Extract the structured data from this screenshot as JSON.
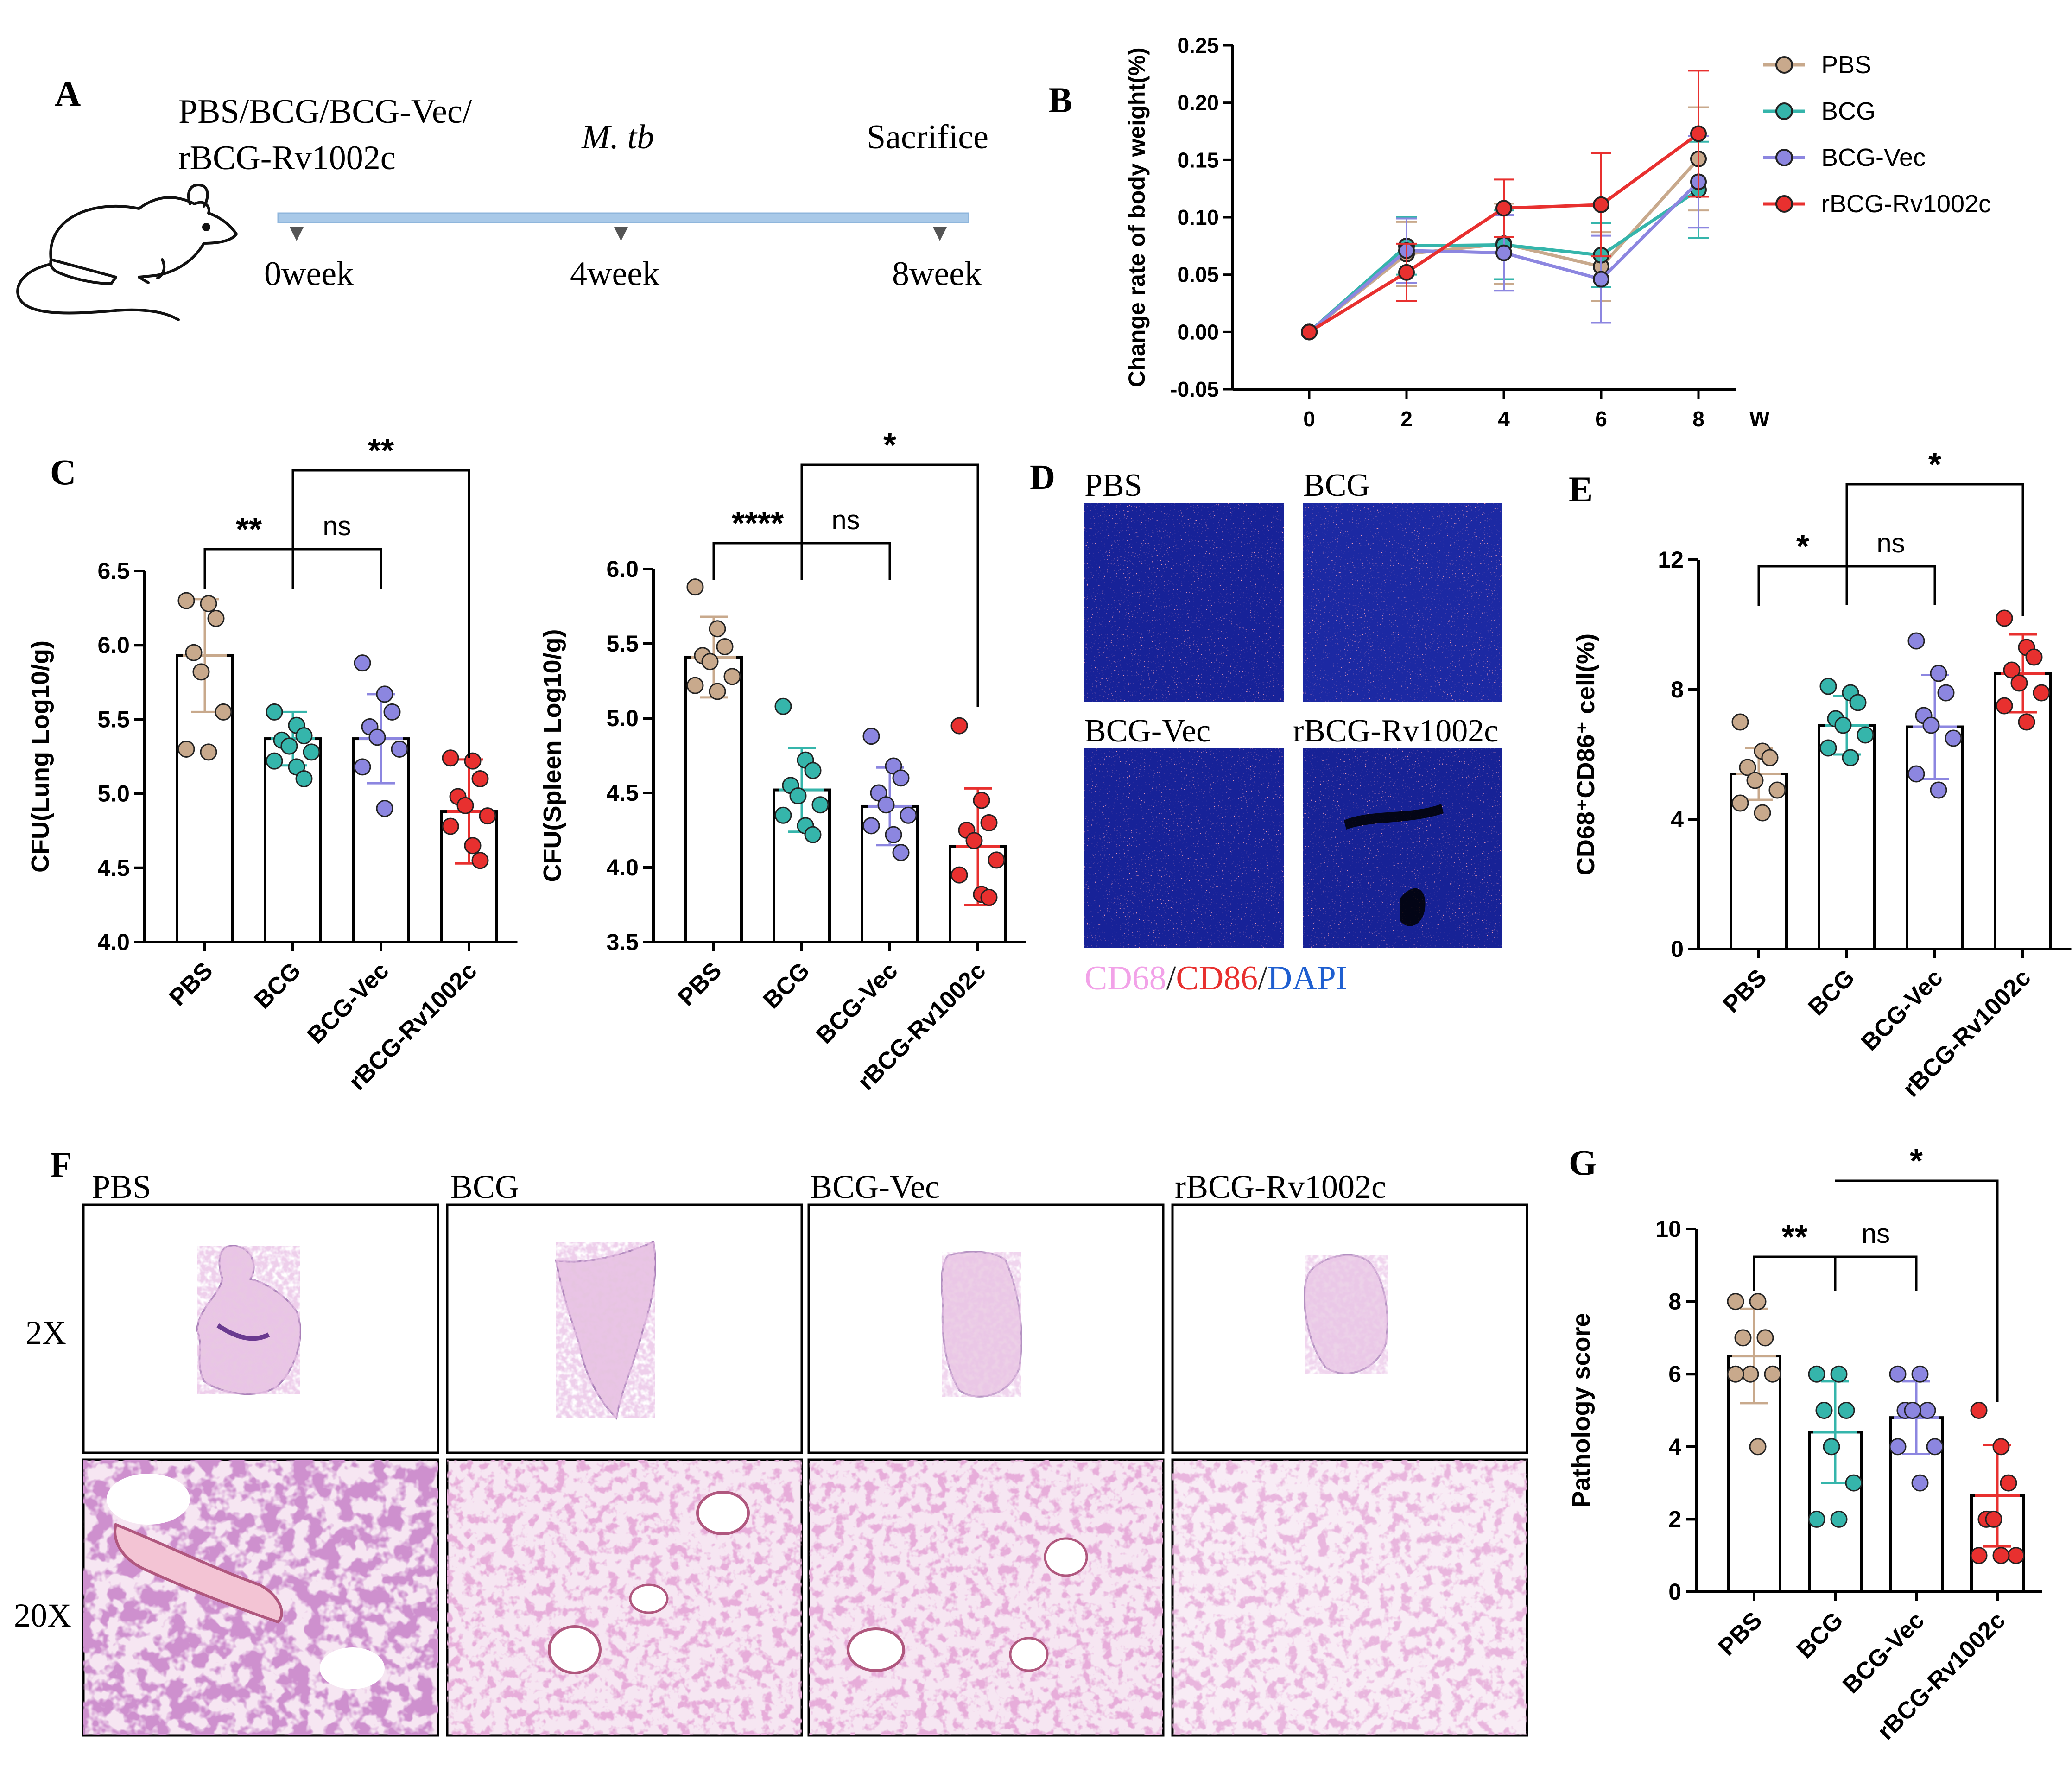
{
  "colors": {
    "PBS": "#c8a98c",
    "BCG": "#35b5ab",
    "BCG-Vec": "#8c86e0",
    "rBCG-Rv1002c": "#e8302f",
    "timeline": "#a9c9e8"
  },
  "panel_a": {
    "letter": "A",
    "groups_line1": "PBS/BCG/BCG-Vec/",
    "groups_line2": "rBCG-Rv1002c",
    "challenge": "M. tb",
    "sacrifice": "Sacrifice",
    "ticks": [
      "0week",
      "4week",
      "8week"
    ]
  },
  "panel_d": {
    "letter": "D",
    "images": [
      "PBS",
      "BCG",
      "BCG-Vec",
      "rBCG-Rv1002c"
    ],
    "stain_cd68": "CD68",
    "stain_sep1": "/",
    "stain_cd86": "CD86",
    "stain_sep2": "/",
    "stain_dapi": "DAPI"
  },
  "panel_f": {
    "letter": "F",
    "columns": [
      "PBS",
      "BCG",
      "BCG-Vec",
      "rBCG-Rv1002c"
    ],
    "rows": [
      "2X",
      "20X"
    ]
  },
  "chart_data": [
    {
      "id": "B",
      "type": "line",
      "panel_letter": "B",
      "ylabel": "Change rate of body weight(%)",
      "xlabel": "W",
      "x": [
        0,
        2,
        4,
        6,
        8
      ],
      "ylim": [
        -0.05,
        0.25
      ],
      "yticks": [
        "-0.05",
        "0.00",
        "0.05",
        "0.10",
        "0.15",
        "0.20",
        "0.25"
      ],
      "xticks": [
        "0",
        "2",
        "4",
        "6",
        "8"
      ],
      "legend_position": "top-right",
      "series": [
        {
          "name": "PBS",
          "values": [
            0.0,
            0.068,
            0.077,
            0.057,
            0.151
          ],
          "err": [
            0,
            0.028,
            0.035,
            0.03,
            0.045
          ]
        },
        {
          "name": "BCG",
          "values": [
            0.0,
            0.075,
            0.076,
            0.067,
            0.124
          ],
          "err": [
            0,
            0.025,
            0.03,
            0.028,
            0.042
          ]
        },
        {
          "name": "BCG-Vec",
          "values": [
            0.0,
            0.071,
            0.069,
            0.046,
            0.131
          ],
          "err": [
            0,
            0.028,
            0.033,
            0.038,
            0.04
          ]
        },
        {
          "name": "rBCG-Rv1002c",
          "values": [
            0.0,
            0.052,
            0.108,
            0.111,
            0.173
          ],
          "err": [
            0,
            0.025,
            0.025,
            0.045,
            0.055
          ]
        }
      ]
    },
    {
      "id": "C1",
      "type": "bar",
      "panel_letter": "C",
      "ylabel": "CFU(Lung Log10/g)",
      "categories": [
        "PBS",
        "BCG",
        "BCG-Vec",
        "rBCG-Rv1002c"
      ],
      "values": [
        5.93,
        5.37,
        5.37,
        4.88
      ],
      "err": [
        0.38,
        0.18,
        0.3,
        0.35
      ],
      "ylim": [
        4.0,
        6.5
      ],
      "yticks": [
        "4.0",
        "4.5",
        "5.0",
        "5.5",
        "6.0",
        "6.5"
      ],
      "points": [
        [
          6.3,
          6.28,
          6.18,
          5.95,
          5.82,
          5.55,
          5.3,
          5.28
        ],
        [
          5.55,
          5.46,
          5.39,
          5.36,
          5.32,
          5.28,
          5.22,
          5.18,
          5.1
        ],
        [
          5.88,
          5.67,
          5.55,
          5.45,
          5.38,
          5.3,
          5.18,
          4.9
        ],
        [
          5.24,
          5.22,
          5.1,
          4.98,
          4.92,
          4.85,
          4.78,
          4.65,
          4.55
        ]
      ],
      "sig": [
        {
          "from": 0,
          "to": 1,
          "label": "**"
        },
        {
          "from": 1,
          "to": 2,
          "label": "ns"
        },
        {
          "from": 1,
          "to": 3,
          "label": "**"
        }
      ]
    },
    {
      "id": "C2",
      "type": "bar",
      "ylabel": "CFU(Spleen Log10/g)",
      "categories": [
        "PBS",
        "BCG",
        "BCG-Vec",
        "rBCG-Rv1002c"
      ],
      "values": [
        5.41,
        4.52,
        4.41,
        4.14
      ],
      "err": [
        0.27,
        0.28,
        0.26,
        0.39
      ],
      "ylim": [
        3.5,
        6.0
      ],
      "yticks": [
        "3.5",
        "4.0",
        "4.5",
        "5.0",
        "5.5",
        "6.0"
      ],
      "points": [
        [
          5.88,
          5.6,
          5.48,
          5.42,
          5.38,
          5.28,
          5.22,
          5.18
        ],
        [
          5.08,
          4.72,
          4.65,
          4.55,
          4.48,
          4.42,
          4.35,
          4.28,
          4.22
        ],
        [
          4.88,
          4.68,
          4.6,
          4.5,
          4.42,
          4.35,
          4.28,
          4.22,
          4.1
        ],
        [
          4.95,
          4.45,
          4.3,
          4.25,
          4.18,
          4.05,
          3.95,
          3.82,
          3.8
        ]
      ],
      "sig": [
        {
          "from": 0,
          "to": 1,
          "label": "****"
        },
        {
          "from": 1,
          "to": 2,
          "label": "ns"
        },
        {
          "from": 1,
          "to": 3,
          "label": "*"
        }
      ]
    },
    {
      "id": "E",
      "type": "bar",
      "panel_letter": "E",
      "ylabel": "CD68⁺CD86⁺ cell(%)",
      "categories": [
        "PBS",
        "BCG",
        "BCG-Vec",
        "rBCG-Rv1002c"
      ],
      "values": [
        5.4,
        6.9,
        6.85,
        8.5
      ],
      "err": [
        0.8,
        0.9,
        1.6,
        1.2
      ],
      "ylim": [
        0,
        12
      ],
      "yticks": [
        "0",
        "4",
        "8",
        "12"
      ],
      "points": [
        [
          7.0,
          6.1,
          5.9,
          5.6,
          5.2,
          4.9,
          4.5,
          4.2
        ],
        [
          8.1,
          7.9,
          7.6,
          7.1,
          6.9,
          6.6,
          6.2,
          5.9
        ],
        [
          9.5,
          8.5,
          7.9,
          7.2,
          6.9,
          6.5,
          5.4,
          4.9
        ],
        [
          10.2,
          9.3,
          9.0,
          8.6,
          8.2,
          7.9,
          7.5,
          7.0
        ]
      ],
      "sig": [
        {
          "from": 0,
          "to": 1,
          "label": "*"
        },
        {
          "from": 1,
          "to": 2,
          "label": "ns"
        },
        {
          "from": 1,
          "to": 3,
          "label": "*"
        }
      ]
    },
    {
      "id": "G",
      "type": "bar",
      "panel_letter": "G",
      "ylabel": "Pathology score",
      "categories": [
        "PBS",
        "BCG",
        "BCG-Vec",
        "rBCG-Rv1002c"
      ],
      "values": [
        6.5,
        4.4,
        4.8,
        2.65
      ],
      "err": [
        1.3,
        1.4,
        1.0,
        1.4
      ],
      "ylim": [
        0,
        10
      ],
      "yticks": [
        "0",
        "2",
        "4",
        "6",
        "8",
        "10"
      ],
      "points": [
        [
          8,
          8,
          7,
          7,
          6,
          6,
          6,
          4
        ],
        [
          6,
          6,
          5,
          5,
          4,
          3,
          2,
          2
        ],
        [
          6,
          6,
          5,
          5,
          5,
          4,
          4,
          3
        ],
        [
          5,
          4,
          3,
          2,
          2,
          1,
          1,
          1
        ]
      ],
      "sig": [
        {
          "from": 0,
          "to": 1,
          "label": "**"
        },
        {
          "from": 1,
          "to": 2,
          "label": "ns"
        },
        {
          "from": 1,
          "to": 3,
          "label": "*"
        }
      ]
    }
  ]
}
